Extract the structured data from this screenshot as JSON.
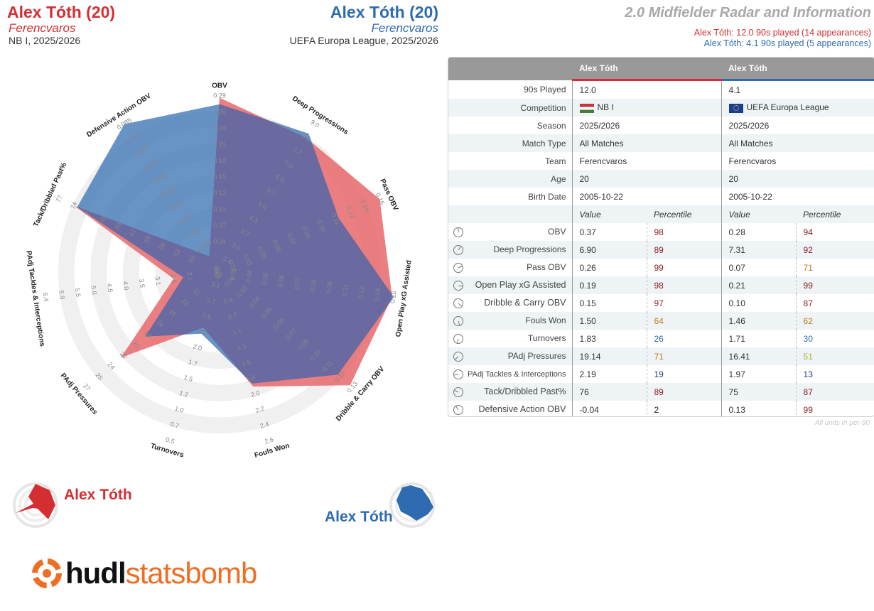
{
  "header": {
    "left": {
      "name": "Alex Tóth (20)",
      "team": "Ferencvaros",
      "competition": "NB I, 2025/2026"
    },
    "right": {
      "name": "Alex Tóth (20)",
      "team": "Ferencvaros",
      "competition": "UEFA Europa League, 2025/2026"
    },
    "title": "2.0 Midfielder Radar and Information",
    "subtitle_red": "Alex Tóth: 12.0 90s played (14 appearances)",
    "subtitle_blue": "Alex Tóth: 4.1 90s played (5 appearances)"
  },
  "colors": {
    "red": "#d42e33",
    "blue": "#2e6bb0",
    "red_fill": "#e8676a",
    "blue_fill": "#3d75b5",
    "overlap": "#6a6aa0",
    "ring_light": "#f0f0f0",
    "ring_white": "#ffffff",
    "logo_orange": "#ee6e23"
  },
  "chart_data": {
    "type": "radar",
    "axes": [
      {
        "name": "OBV",
        "ticks": [
          "0.04",
          "0.07",
          "0.10",
          "0.12",
          "0.15",
          "0.18",
          "0.21",
          "0.24",
          "0.26",
          "0.29"
        ]
      },
      {
        "name": "Deep Progressions",
        "ticks": [
          "1.7",
          "2.4",
          "3.0",
          "3.7",
          "4.3",
          "5.0",
          "5.7",
          "6.3",
          "7.0",
          "7.7",
          "8.3",
          "9.0"
        ]
      },
      {
        "name": "Pass OBV",
        "ticks": [
          "0.01",
          "0.02",
          "0.03",
          "0.05",
          "0.06",
          "0.07",
          "0.08",
          "0.10",
          "0.11",
          "0.12",
          "0.14",
          "0.16"
        ]
      },
      {
        "name": "Open Play xG Assisted",
        "ticks": [
          "0.02",
          "0.03",
          "0.04",
          "0.05",
          "0.06",
          "0.07",
          "0.08",
          "0.09",
          "0.11",
          "0.12",
          "0.14",
          "0.15"
        ]
      },
      {
        "name": "Dribble & Carry OBV",
        "ticks": [
          "0.02",
          "0.03",
          "0.04",
          "0.05",
          "0.06",
          "0.07",
          "0.08",
          "0.10",
          "0.11",
          "0.12",
          "0.13"
        ]
      },
      {
        "name": "Fouls Won",
        "ticks": [
          "0.4",
          "0.7",
          "1.1",
          "1.3",
          "1.6",
          "1.8",
          "2.0",
          "2.2",
          "2.4",
          "2.6"
        ]
      },
      {
        "name": "Turnovers",
        "ticks": [
          "3.1",
          "2.7",
          "2.5",
          "2.2",
          "2.0",
          "1.7",
          "1.5",
          "1.2",
          "1.0",
          "0.7",
          "0.5"
        ]
      },
      {
        "name": "PAdj Pressures",
        "ticks": [
          "11",
          "13",
          "15",
          "16",
          "18",
          "20",
          "22",
          "24",
          "25",
          "27"
        ]
      },
      {
        "name": "PAdj Tackles & Interceptions",
        "ticks": [
          "2.1",
          "2.6",
          "3.1",
          "3.5",
          "4.0",
          "4.5",
          "5.0",
          "5.5",
          "5.9",
          "6.4"
        ]
      },
      {
        "name": "Tack/Dribbled Past%",
        "ticks": [
          "50",
          "53",
          "56",
          "59",
          "62",
          "65",
          "68",
          "71",
          "74",
          "77"
        ]
      },
      {
        "name": "Defensive Action OBV",
        "ticks": [
          "-0.003",
          "0.007",
          "0.017",
          "0.026",
          "0.036",
          "0.046",
          "0.056",
          "0.065",
          "0.075",
          "0.085"
        ]
      }
    ],
    "series": [
      {
        "name": "Alex Tóth",
        "competition": "NB I",
        "color": "#e8676a",
        "percentiles": [
          98,
          89,
          99,
          98,
          97,
          64,
          26,
          71,
          19,
          89,
          2
        ]
      },
      {
        "name": "Alex Tóth",
        "competition": "UEFA Europa League",
        "color": "#3d75b5",
        "percentiles": [
          94,
          92,
          71,
          99,
          87,
          62,
          30,
          51,
          13,
          87,
          99
        ]
      }
    ]
  },
  "table": {
    "header_labels": [
      "Alex Tóth",
      "Alex Tóth"
    ],
    "info_rows": [
      {
        "label": "90s Played",
        "a": "12.0",
        "b": "4.1"
      },
      {
        "label": "Competition",
        "a": "NB I",
        "b": "UEFA Europa League",
        "flag_a": "hungary-flag",
        "flag_b": "eu-flag"
      },
      {
        "label": "Season",
        "a": "2025/2026",
        "b": "2025/2026"
      },
      {
        "label": "Match Type",
        "a": "All Matches",
        "b": "All Matches"
      },
      {
        "label": "Team",
        "a": "Ferencvaros",
        "b": "Ferencvaros"
      },
      {
        "label": "Age",
        "a": "20",
        "b": "20"
      },
      {
        "label": "Birth Date",
        "a": "2005-10-22",
        "b": "2005-10-22"
      }
    ],
    "col_value": "Value",
    "col_percentile": "Percentile",
    "stat_rows": [
      {
        "label": "OBV",
        "a_val": "0.37",
        "a_pct": "98",
        "b_val": "0.28",
        "b_pct": "94"
      },
      {
        "label": "Deep Progressions",
        "a_val": "6.90",
        "a_pct": "89",
        "b_val": "7.31",
        "b_pct": "92"
      },
      {
        "label": "Pass OBV",
        "a_val": "0.26",
        "a_pct": "99",
        "b_val": "0.07",
        "b_pct": "71"
      },
      {
        "label": "Open Play xG Assisted",
        "a_val": "0.19",
        "a_pct": "98",
        "b_val": "0.21",
        "b_pct": "99"
      },
      {
        "label": "Dribble & Carry OBV",
        "a_val": "0.15",
        "a_pct": "97",
        "b_val": "0.10",
        "b_pct": "87"
      },
      {
        "label": "Fouls Won",
        "a_val": "1.50",
        "a_pct": "64",
        "b_val": "1.46",
        "b_pct": "62"
      },
      {
        "label": "Turnovers",
        "a_val": "1.83",
        "a_pct": "26",
        "b_val": "1.71",
        "b_pct": "30"
      },
      {
        "label": "PAdj Pressures",
        "a_val": "19.14",
        "a_pct": "71",
        "b_val": "16.41",
        "b_pct": "51"
      },
      {
        "label": "PAdj Tackles & Interceptions",
        "a_val": "2.19",
        "a_pct": "19",
        "b_val": "1.97",
        "b_pct": "13"
      },
      {
        "label": "Tack/Dribbled Past%",
        "a_val": "76",
        "a_pct": "89",
        "b_val": "75",
        "b_pct": "87"
      },
      {
        "label": "Defensive Action OBV",
        "a_val": "-0.04",
        "a_pct": "2",
        "b_val": "0.13",
        "b_pct": "99"
      }
    ],
    "note": "All units in per-90"
  },
  "legend": {
    "red_name": "Alex Tóth",
    "blue_name": "Alex Tóth"
  },
  "logo": {
    "bold": "hudl",
    "rest": "statsbomb"
  }
}
